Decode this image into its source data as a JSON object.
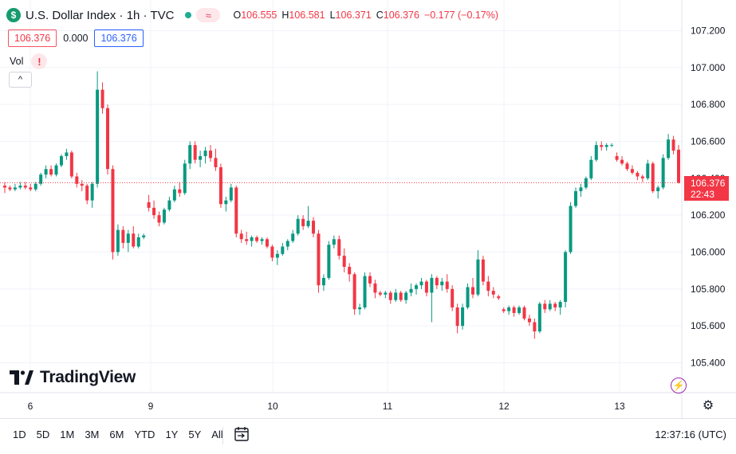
{
  "header": {
    "symbol_letter": "$",
    "title": "U.S. Dollar Index · 1h · TVC",
    "wave_icon": "≈",
    "ohlc": [
      {
        "k": "O",
        "v": "106.555"
      },
      {
        "k": "H",
        "v": "106.581"
      },
      {
        "k": "L",
        "v": "106.371"
      },
      {
        "k": "C",
        "v": "106.376"
      },
      {
        "k": "",
        "v": "−0.177 (−0.17%)"
      }
    ]
  },
  "quote": {
    "bid": "106.376",
    "spread": "0.000",
    "ask": "106.376"
  },
  "volume": {
    "label": "Vol",
    "warning": "!",
    "collapse": "^"
  },
  "brand": "TradingView",
  "last_price": {
    "value": "106.376",
    "countdown": "22:43"
  },
  "bottom": {
    "ranges": [
      "1D",
      "5D",
      "1M",
      "3M",
      "6M",
      "YTD",
      "1Y",
      "5Y",
      "All"
    ],
    "clock": "12:37:16 (UTC)"
  },
  "colors": {
    "up": "#089981",
    "down": "#f23645",
    "grid": "#f0f3fa",
    "text": "#131722",
    "accent": "#2962ff"
  },
  "chart_data": {
    "type": "candlestick",
    "title": "U.S. Dollar Index · 1h · TVC",
    "ylim": [
      105.32,
      107.28
    ],
    "y_ticks": [
      105.4,
      105.6,
      105.8,
      106.0,
      106.2,
      106.4,
      106.6,
      106.8,
      107.0,
      107.2
    ],
    "y_tick_labels": [
      "105.400",
      "105.600",
      "105.800",
      "106.000",
      "106.200",
      "106.400",
      "106.600",
      "106.800",
      "107.000",
      "107.200"
    ],
    "x_ticks": [
      {
        "day": 6,
        "label": "6"
      },
      {
        "day": 9,
        "label": "9"
      },
      {
        "day": 10,
        "label": "10"
      },
      {
        "day": 11,
        "label": "11"
      },
      {
        "day": 12,
        "label": "12"
      },
      {
        "day": 13,
        "label": "13"
      }
    ],
    "last_price": 106.376,
    "candles": [
      [
        106.36,
        106.38,
        106.32,
        106.35
      ],
      [
        106.35,
        106.36,
        106.33,
        106.34
      ],
      [
        106.34,
        106.37,
        106.33,
        106.35
      ],
      [
        106.35,
        106.38,
        106.34,
        106.36
      ],
      [
        106.36,
        106.38,
        106.34,
        106.35
      ],
      [
        106.35,
        106.37,
        106.33,
        106.34
      ],
      [
        106.34,
        106.38,
        106.33,
        106.37
      ],
      [
        106.37,
        106.43,
        106.36,
        106.42
      ],
      [
        106.42,
        106.47,
        106.4,
        106.45
      ],
      [
        106.45,
        106.47,
        106.41,
        106.42
      ],
      [
        106.42,
        106.48,
        106.41,
        106.47
      ],
      [
        106.47,
        106.53,
        106.46,
        106.52
      ],
      [
        106.52,
        106.56,
        106.5,
        106.54
      ],
      [
        106.54,
        106.55,
        106.4,
        106.41
      ],
      [
        106.41,
        106.43,
        106.35,
        106.37
      ],
      [
        106.37,
        106.39,
        106.33,
        106.36
      ],
      [
        106.36,
        106.37,
        106.26,
        106.28
      ],
      [
        106.28,
        106.38,
        106.24,
        106.37
      ],
      [
        106.37,
        106.98,
        106.35,
        106.88
      ],
      [
        106.88,
        106.92,
        106.75,
        106.78
      ],
      [
        106.78,
        106.8,
        106.42,
        106.45
      ],
      [
        106.45,
        106.47,
        105.96,
        106.0
      ],
      [
        106.0,
        106.15,
        105.98,
        106.12
      ],
      [
        106.12,
        106.14,
        106.02,
        106.05
      ],
      [
        106.05,
        106.12,
        106.0,
        106.1
      ],
      [
        106.1,
        106.14,
        106.02,
        106.03
      ],
      [
        106.03,
        106.1,
        106.02,
        106.08
      ],
      [
        106.08,
        106.1,
        106.07,
        106.09
      ],
      [
        106.27,
        106.31,
        106.22,
        106.24
      ],
      [
        106.24,
        106.28,
        106.18,
        106.2
      ],
      [
        106.2,
        106.22,
        106.14,
        106.16
      ],
      [
        106.16,
        106.24,
        106.15,
        106.23
      ],
      [
        106.23,
        106.3,
        106.22,
        106.28
      ],
      [
        106.28,
        106.36,
        106.27,
        106.34
      ],
      [
        106.34,
        106.38,
        106.3,
        106.32
      ],
      [
        106.32,
        106.5,
        106.31,
        106.48
      ],
      [
        106.48,
        106.6,
        106.45,
        106.58
      ],
      [
        106.58,
        106.6,
        106.48,
        106.5
      ],
      [
        106.5,
        106.55,
        106.46,
        106.52
      ],
      [
        106.52,
        106.57,
        106.48,
        106.55
      ],
      [
        106.55,
        106.58,
        106.49,
        106.51
      ],
      [
        106.51,
        106.56,
        106.44,
        106.46
      ],
      [
        106.46,
        106.48,
        106.24,
        106.26
      ],
      [
        106.26,
        106.3,
        106.22,
        106.28
      ],
      [
        106.28,
        106.37,
        106.27,
        106.35
      ],
      [
        106.35,
        106.36,
        106.08,
        106.1
      ],
      [
        106.1,
        106.12,
        106.05,
        106.07
      ],
      [
        106.07,
        106.11,
        106.04,
        106.06
      ],
      [
        106.06,
        106.09,
        106.03,
        106.08
      ],
      [
        106.08,
        106.09,
        106.05,
        106.06
      ],
      [
        106.06,
        106.08,
        106.04,
        106.07
      ],
      [
        106.07,
        106.08,
        106.02,
        106.03
      ],
      [
        106.03,
        106.04,
        105.95,
        105.97
      ],
      [
        105.97,
        106.01,
        105.93,
        105.99
      ],
      [
        105.99,
        106.05,
        105.98,
        106.03
      ],
      [
        106.03,
        106.07,
        106.01,
        106.06
      ],
      [
        106.06,
        106.12,
        106.05,
        106.1
      ],
      [
        106.1,
        106.2,
        106.09,
        106.18
      ],
      [
        106.18,
        106.2,
        106.12,
        106.14
      ],
      [
        106.14,
        106.25,
        106.13,
        106.17
      ],
      [
        106.17,
        106.19,
        106.08,
        106.1
      ],
      [
        106.1,
        106.12,
        105.78,
        105.82
      ],
      [
        105.82,
        105.88,
        105.79,
        105.86
      ],
      [
        105.86,
        106.06,
        105.85,
        106.04
      ],
      [
        106.04,
        106.09,
        106.02,
        106.07
      ],
      [
        106.07,
        106.09,
        105.96,
        105.98
      ],
      [
        105.98,
        106.02,
        105.89,
        105.92
      ],
      [
        105.92,
        105.94,
        105.84,
        105.88
      ],
      [
        105.88,
        105.89,
        105.66,
        105.69
      ],
      [
        105.69,
        105.72,
        105.66,
        105.7
      ],
      [
        105.7,
        105.89,
        105.69,
        105.87
      ],
      [
        105.87,
        105.89,
        105.81,
        105.83
      ],
      [
        105.83,
        105.85,
        105.75,
        105.78
      ],
      [
        105.78,
        105.79,
        105.76,
        105.77
      ],
      [
        105.77,
        105.79,
        105.75,
        105.78
      ],
      [
        105.78,
        105.79,
        105.72,
        105.74
      ],
      [
        105.74,
        105.8,
        105.73,
        105.78
      ],
      [
        105.78,
        105.79,
        105.73,
        105.74
      ],
      [
        105.74,
        105.79,
        105.72,
        105.78
      ],
      [
        105.78,
        105.83,
        105.76,
        105.8
      ],
      [
        105.8,
        105.83,
        105.77,
        105.82
      ],
      [
        105.82,
        105.86,
        105.8,
        105.84
      ],
      [
        105.84,
        105.85,
        105.76,
        105.78
      ],
      [
        105.78,
        105.88,
        105.62,
        105.86
      ],
      [
        105.86,
        105.87,
        105.8,
        105.82
      ],
      [
        105.82,
        105.86,
        105.79,
        105.84
      ],
      [
        105.84,
        105.88,
        105.78,
        105.8
      ],
      [
        105.8,
        105.82,
        105.68,
        105.7
      ],
      [
        105.7,
        105.72,
        105.56,
        105.6
      ],
      [
        105.6,
        105.72,
        105.58,
        105.7
      ],
      [
        105.7,
        105.83,
        105.69,
        105.81
      ],
      [
        105.81,
        105.86,
        105.75,
        105.77
      ],
      [
        105.77,
        106.01,
        105.76,
        105.96
      ],
      [
        105.96,
        105.98,
        105.82,
        105.84
      ],
      [
        105.84,
        105.87,
        105.76,
        105.79
      ],
      [
        105.79,
        105.81,
        105.75,
        105.77
      ],
      [
        105.76,
        105.77,
        105.74,
        105.75
      ],
      [
        105.69,
        105.7,
        105.67,
        105.68
      ],
      [
        105.68,
        105.71,
        105.66,
        105.7
      ],
      [
        105.7,
        105.71,
        105.65,
        105.67
      ],
      [
        105.67,
        105.71,
        105.66,
        105.7
      ],
      [
        105.7,
        105.71,
        105.63,
        105.64
      ],
      [
        105.64,
        105.66,
        105.6,
        105.62
      ],
      [
        105.62,
        105.64,
        105.53,
        105.57
      ],
      [
        105.57,
        105.73,
        105.56,
        105.72
      ],
      [
        105.72,
        105.74,
        105.67,
        105.69
      ],
      [
        105.69,
        105.74,
        105.68,
        105.72
      ],
      [
        105.72,
        105.73,
        105.68,
        105.7
      ],
      [
        105.7,
        105.74,
        105.66,
        105.73
      ],
      [
        105.73,
        106.01,
        105.7,
        106.0
      ],
      [
        106.0,
        106.27,
        105.99,
        106.25
      ],
      [
        106.25,
        106.35,
        106.24,
        106.33
      ],
      [
        106.33,
        106.37,
        106.3,
        106.35
      ],
      [
        106.35,
        106.41,
        106.34,
        106.4
      ],
      [
        106.4,
        106.52,
        106.39,
        106.5
      ],
      [
        106.5,
        106.6,
        106.49,
        106.58
      ],
      [
        106.58,
        106.6,
        106.55,
        106.57
      ],
      [
        106.57,
        106.59,
        106.55,
        106.58
      ],
      [
        106.58,
        106.59,
        106.57,
        106.58
      ],
      [
        106.52,
        106.54,
        106.49,
        106.5
      ],
      [
        106.5,
        106.52,
        106.47,
        106.48
      ],
      [
        106.48,
        106.49,
        106.44,
        106.45
      ],
      [
        106.45,
        106.47,
        106.42,
        106.43
      ],
      [
        106.43,
        106.44,
        106.39,
        106.41
      ],
      [
        106.41,
        106.42,
        106.38,
        106.4
      ],
      [
        106.4,
        106.5,
        106.39,
        106.48
      ],
      [
        106.48,
        106.49,
        106.32,
        106.33
      ],
      [
        106.33,
        106.36,
        106.29,
        106.35
      ],
      [
        106.35,
        106.53,
        106.34,
        106.51
      ],
      [
        106.51,
        106.64,
        106.5,
        106.61
      ],
      [
        106.61,
        106.63,
        106.53,
        106.55
      ],
      [
        106.555,
        106.581,
        106.371,
        106.376
      ]
    ]
  }
}
